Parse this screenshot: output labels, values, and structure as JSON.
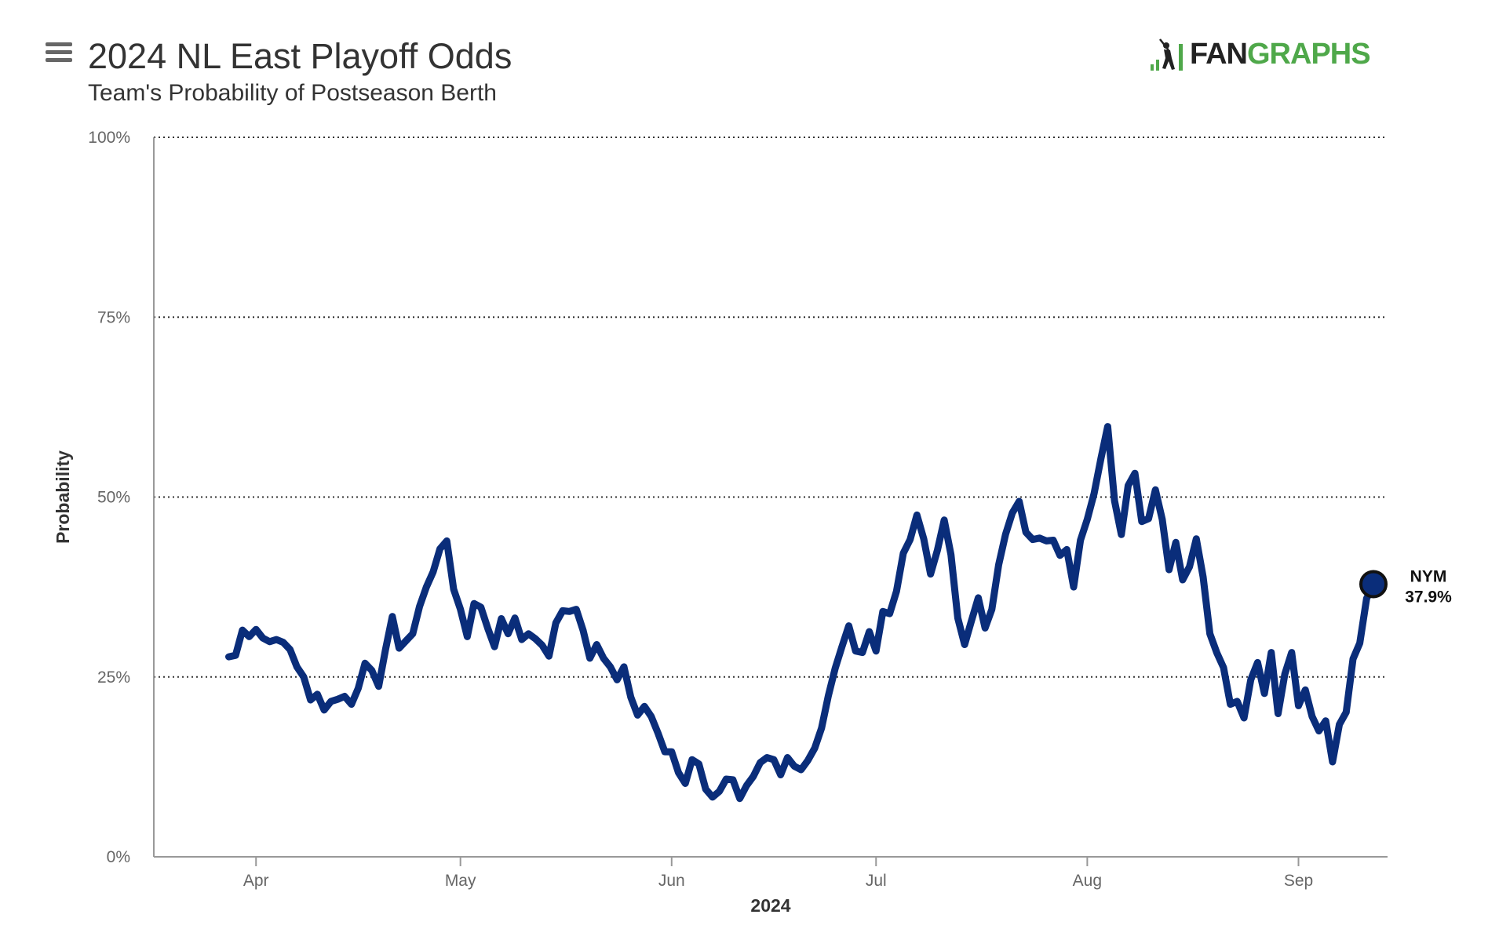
{
  "header": {
    "title": "2024 NL East Playoff Odds",
    "subtitle": "Team's Probability of Postseason Berth"
  },
  "logo": {
    "part1": "FAN",
    "part2": "GRAPHS"
  },
  "icons": {
    "menu": "hamburger-menu-icon",
    "logo": "batter-silhouette-icon"
  },
  "colors": {
    "line": "#0a2d7a",
    "grid": "#333333",
    "logo_green": "#4fa84a"
  },
  "chart_data": {
    "type": "line",
    "xlabel": "2024",
    "ylabel": "Probability",
    "ylim": [
      0,
      100
    ],
    "y_ticks": [
      {
        "value": 0,
        "label": "0%"
      },
      {
        "value": 25,
        "label": "25%"
      },
      {
        "value": 50,
        "label": "50%"
      },
      {
        "value": 75,
        "label": "75%"
      },
      {
        "value": 100,
        "label": "100%"
      }
    ],
    "x_range": [
      "2024-03-17",
      "2024-09-09"
    ],
    "x_ticks": [
      {
        "date": "2024-04-01",
        "label": "Apr"
      },
      {
        "date": "2024-05-01",
        "label": "May"
      },
      {
        "date": "2024-06-01",
        "label": "Jun"
      },
      {
        "date": "2024-07-01",
        "label": "Jul"
      },
      {
        "date": "2024-08-01",
        "label": "Aug"
      },
      {
        "date": "2024-09-01",
        "label": "Sep"
      }
    ],
    "grid": "dotted horizontal",
    "series": [
      {
        "name": "NYM",
        "color": "#0a2d7a",
        "end_label": "NYM",
        "end_value_label": "37.9%",
        "points": [
          [
            "2024-03-28",
            27.8
          ],
          [
            "2024-03-29",
            28.0
          ],
          [
            "2024-03-30",
            31.5
          ],
          [
            "2024-03-31",
            30.6
          ],
          [
            "2024-04-01",
            31.6
          ],
          [
            "2024-04-02",
            30.4
          ],
          [
            "2024-04-03",
            29.9
          ],
          [
            "2024-04-04",
            30.2
          ],
          [
            "2024-04-05",
            29.8
          ],
          [
            "2024-04-06",
            28.8
          ],
          [
            "2024-04-07",
            26.4
          ],
          [
            "2024-04-08",
            25.0
          ],
          [
            "2024-04-09",
            21.8
          ],
          [
            "2024-04-10",
            22.6
          ],
          [
            "2024-04-11",
            20.4
          ],
          [
            "2024-04-12",
            21.6
          ],
          [
            "2024-04-13",
            21.9
          ],
          [
            "2024-04-14",
            22.3
          ],
          [
            "2024-04-15",
            21.2
          ],
          [
            "2024-04-16",
            23.4
          ],
          [
            "2024-04-17",
            26.9
          ],
          [
            "2024-04-18",
            25.9
          ],
          [
            "2024-04-19",
            23.7
          ],
          [
            "2024-04-20",
            28.8
          ],
          [
            "2024-04-21",
            33.4
          ],
          [
            "2024-04-22",
            29.0
          ],
          [
            "2024-04-23",
            30.0
          ],
          [
            "2024-04-24",
            31.0
          ],
          [
            "2024-04-25",
            34.8
          ],
          [
            "2024-04-26",
            37.5
          ],
          [
            "2024-04-27",
            39.6
          ],
          [
            "2024-04-28",
            42.8
          ],
          [
            "2024-04-29",
            43.9
          ],
          [
            "2024-04-30",
            37.2
          ],
          [
            "2024-05-01",
            34.4
          ],
          [
            "2024-05-02",
            30.6
          ],
          [
            "2024-05-03",
            35.2
          ],
          [
            "2024-05-04",
            34.7
          ],
          [
            "2024-05-05",
            31.8
          ],
          [
            "2024-05-06",
            29.2
          ],
          [
            "2024-05-07",
            33.1
          ],
          [
            "2024-05-08",
            31.0
          ],
          [
            "2024-05-09",
            33.2
          ],
          [
            "2024-05-10",
            30.2
          ],
          [
            "2024-05-11",
            31.0
          ],
          [
            "2024-05-12",
            30.3
          ],
          [
            "2024-05-13",
            29.4
          ],
          [
            "2024-05-14",
            27.9
          ],
          [
            "2024-05-15",
            32.5
          ],
          [
            "2024-05-16",
            34.2
          ],
          [
            "2024-05-17",
            34.1
          ],
          [
            "2024-05-18",
            34.4
          ],
          [
            "2024-05-19",
            31.5
          ],
          [
            "2024-05-20",
            27.6
          ],
          [
            "2024-05-21",
            29.5
          ],
          [
            "2024-05-22",
            27.6
          ],
          [
            "2024-05-23",
            26.4
          ],
          [
            "2024-05-24",
            24.6
          ],
          [
            "2024-05-25",
            26.4
          ],
          [
            "2024-05-26",
            22.2
          ],
          [
            "2024-05-27",
            19.7
          ],
          [
            "2024-05-28",
            20.9
          ],
          [
            "2024-05-29",
            19.5
          ],
          [
            "2024-05-30",
            17.2
          ],
          [
            "2024-05-31",
            14.6
          ],
          [
            "2024-06-01",
            14.6
          ],
          [
            "2024-06-02",
            11.7
          ],
          [
            "2024-06-03",
            10.2
          ],
          [
            "2024-06-04",
            13.5
          ],
          [
            "2024-06-05",
            12.9
          ],
          [
            "2024-06-06",
            9.4
          ],
          [
            "2024-06-07",
            8.3
          ],
          [
            "2024-06-08",
            9.1
          ],
          [
            "2024-06-09",
            10.8
          ],
          [
            "2024-06-10",
            10.7
          ],
          [
            "2024-06-11",
            8.1
          ],
          [
            "2024-06-12",
            9.9
          ],
          [
            "2024-06-13",
            11.2
          ],
          [
            "2024-06-14",
            13.1
          ],
          [
            "2024-06-15",
            13.8
          ],
          [
            "2024-06-16",
            13.5
          ],
          [
            "2024-06-17",
            11.4
          ],
          [
            "2024-06-18",
            13.8
          ],
          [
            "2024-06-19",
            12.6
          ],
          [
            "2024-06-20",
            12.1
          ],
          [
            "2024-06-21",
            13.4
          ],
          [
            "2024-06-22",
            15.1
          ],
          [
            "2024-06-23",
            17.9
          ],
          [
            "2024-06-24",
            22.4
          ],
          [
            "2024-06-25",
            26.2
          ],
          [
            "2024-06-26",
            29.2
          ],
          [
            "2024-06-27",
            32.1
          ],
          [
            "2024-06-28",
            28.6
          ],
          [
            "2024-06-29",
            28.4
          ],
          [
            "2024-06-30",
            31.3
          ],
          [
            "2024-07-01",
            28.6
          ],
          [
            "2024-07-02",
            34.1
          ],
          [
            "2024-07-03",
            33.8
          ],
          [
            "2024-07-04",
            36.9
          ],
          [
            "2024-07-05",
            42.2
          ],
          [
            "2024-07-06",
            44.1
          ],
          [
            "2024-07-07",
            47.5
          ],
          [
            "2024-07-08",
            44.2
          ],
          [
            "2024-07-09",
            39.3
          ],
          [
            "2024-07-10",
            42.6
          ],
          [
            "2024-07-11",
            46.8
          ],
          [
            "2024-07-12",
            42.0
          ],
          [
            "2024-07-13",
            33.2
          ],
          [
            "2024-07-14",
            29.5
          ],
          [
            "2024-07-15",
            32.8
          ],
          [
            "2024-07-16",
            36.0
          ],
          [
            "2024-07-17",
            31.8
          ],
          [
            "2024-07-18",
            34.4
          ],
          [
            "2024-07-19",
            40.6
          ],
          [
            "2024-07-20",
            44.8
          ],
          [
            "2024-07-21",
            47.8
          ],
          [
            "2024-07-22",
            49.4
          ],
          [
            "2024-07-23",
            45.1
          ],
          [
            "2024-07-24",
            44.1
          ],
          [
            "2024-07-25",
            44.3
          ],
          [
            "2024-07-26",
            43.9
          ],
          [
            "2024-07-27",
            44.0
          ],
          [
            "2024-07-28",
            41.9
          ],
          [
            "2024-07-29",
            42.7
          ],
          [
            "2024-07-30",
            37.5
          ],
          [
            "2024-07-31",
            44.0
          ],
          [
            "2024-08-01",
            46.9
          ],
          [
            "2024-08-02",
            50.5
          ],
          [
            "2024-08-03",
            55.3
          ],
          [
            "2024-08-04",
            59.8
          ],
          [
            "2024-08-05",
            49.5
          ],
          [
            "2024-08-06",
            44.8
          ],
          [
            "2024-08-07",
            51.6
          ],
          [
            "2024-08-08",
            53.3
          ],
          [
            "2024-08-09",
            46.6
          ],
          [
            "2024-08-10",
            47.0
          ],
          [
            "2024-08-11",
            51.0
          ],
          [
            "2024-08-12",
            46.9
          ],
          [
            "2024-08-13",
            39.9
          ],
          [
            "2024-08-14",
            43.7
          ],
          [
            "2024-08-15",
            38.5
          ],
          [
            "2024-08-16",
            40.3
          ],
          [
            "2024-08-17",
            44.2
          ],
          [
            "2024-08-18",
            38.9
          ],
          [
            "2024-08-19",
            31.0
          ],
          [
            "2024-08-20",
            28.4
          ],
          [
            "2024-08-21",
            26.3
          ],
          [
            "2024-08-22",
            21.2
          ],
          [
            "2024-08-23",
            21.6
          ],
          [
            "2024-08-24",
            19.3
          ],
          [
            "2024-08-25",
            24.6
          ],
          [
            "2024-08-26",
            27.0
          ],
          [
            "2024-08-27",
            22.7
          ],
          [
            "2024-08-28",
            28.4
          ],
          [
            "2024-08-29",
            19.9
          ],
          [
            "2024-08-30",
            25.4
          ],
          [
            "2024-08-31",
            28.4
          ],
          [
            "2024-09-01",
            21.0
          ],
          [
            "2024-09-02",
            23.2
          ],
          [
            "2024-09-03",
            19.5
          ],
          [
            "2024-09-04",
            17.5
          ],
          [
            "2024-09-05",
            18.9
          ],
          [
            "2024-09-06",
            13.2
          ],
          [
            "2024-09-07",
            18.4
          ],
          [
            "2024-09-08",
            20.1
          ],
          [
            "2024-09-09",
            27.5
          ],
          [
            "2024-09-10",
            29.7
          ],
          [
            "2024-09-11",
            35.9
          ],
          [
            "2024-09-12",
            37.9
          ]
        ]
      }
    ]
  }
}
